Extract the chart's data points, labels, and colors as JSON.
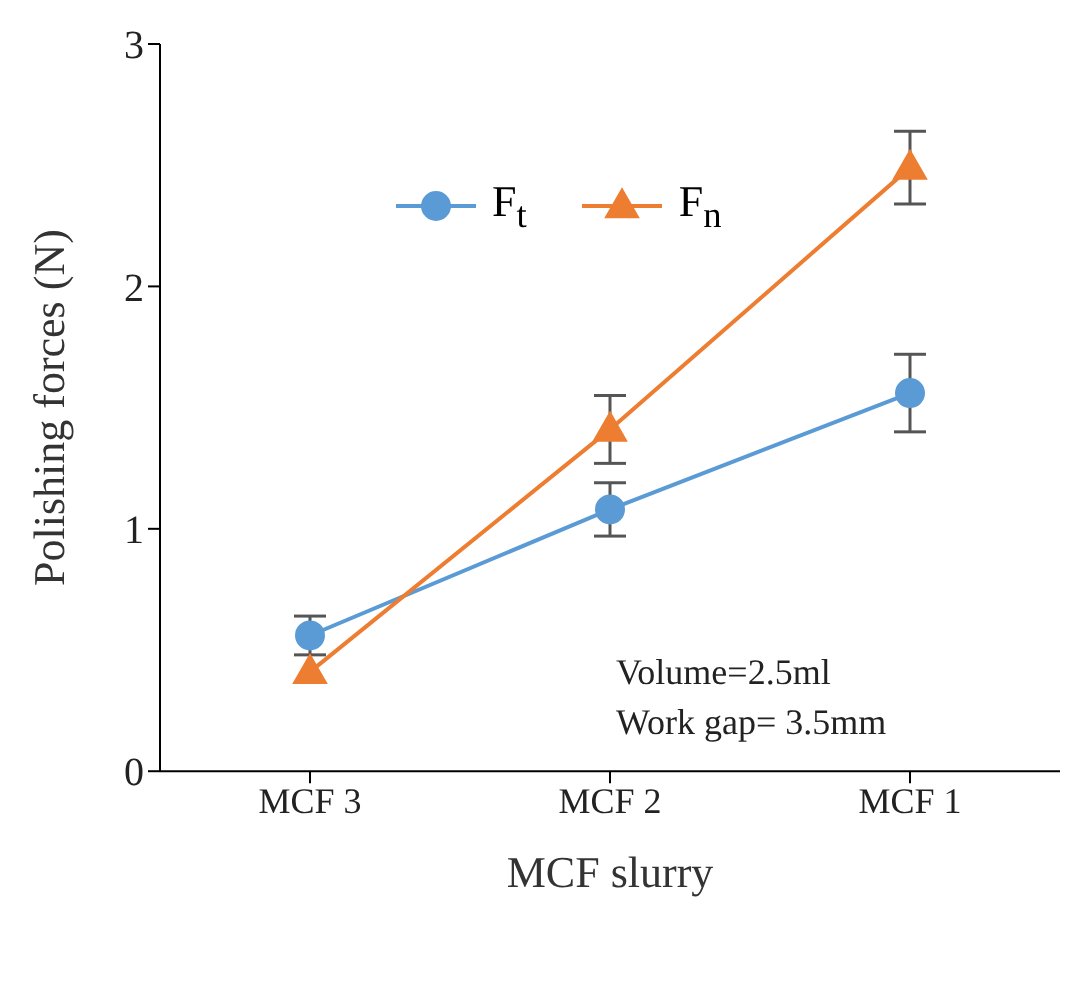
{
  "chart_data": {
    "type": "line",
    "xlabel": "MCF slurry",
    "ylabel": "Polishing forces (N)",
    "categories": [
      "MCF 3",
      "MCF 2",
      "MCF 1"
    ],
    "series": [
      {
        "name": "F$_{t}$",
        "color": "#5b9bd5",
        "marker": "circle",
        "values": [
          0.56,
          1.08,
          1.56
        ],
        "errors": [
          0.08,
          0.11,
          0.16
        ]
      },
      {
        "name": "F$_{n}$",
        "color": "#ed7d31",
        "marker": "triangle",
        "values": [
          0.41,
          1.41,
          2.49
        ],
        "errors": [
          null,
          0.14,
          0.15
        ]
      }
    ],
    "ylim": [
      0,
      3
    ],
    "yticks": [
      0,
      1,
      2,
      3
    ],
    "grid": false,
    "legend": "top left",
    "annotations": [
      "Volume=2.5ml",
      "Work gap= 3.5mm"
    ]
  }
}
